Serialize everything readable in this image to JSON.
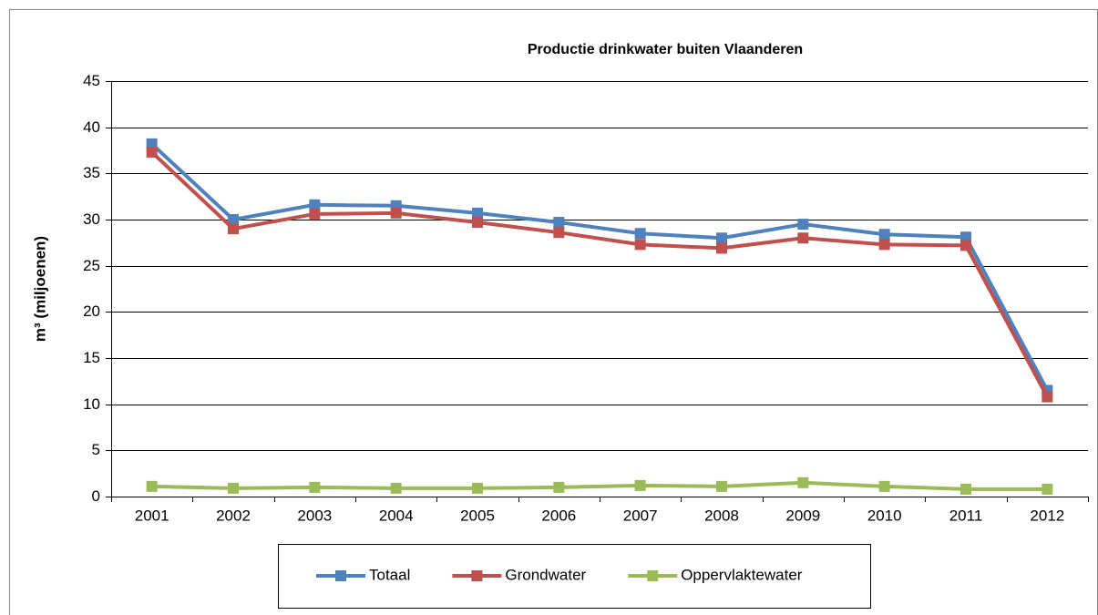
{
  "chart_data": {
    "type": "line",
    "title": "Productie drinkwater buiten Vlaanderen",
    "y_label": "m³ (miljoenen)",
    "categories": [
      "2001",
      "2002",
      "2003",
      "2004",
      "2005",
      "2006",
      "2007",
      "2008",
      "2009",
      "2010",
      "2011",
      "2012"
    ],
    "series": [
      {
        "name": "Totaal",
        "color": "#4f81bd",
        "values": [
          38.2,
          30.0,
          31.6,
          31.5,
          30.7,
          29.7,
          28.5,
          28.0,
          29.5,
          28.4,
          28.1,
          11.5
        ]
      },
      {
        "name": "Grondwater",
        "color": "#c0504d",
        "values": [
          37.3,
          29.0,
          30.6,
          30.7,
          29.7,
          28.6,
          27.3,
          26.9,
          28.0,
          27.3,
          27.2,
          10.8
        ]
      },
      {
        "name": "Oppervlaktewater",
        "color": "#9bbb59",
        "values": [
          1.1,
          0.9,
          1.0,
          0.9,
          0.9,
          1.0,
          1.2,
          1.1,
          1.5,
          1.1,
          0.8,
          0.8
        ]
      }
    ],
    "ylim": [
      0,
      45
    ],
    "yticks": [
      0,
      5,
      10,
      15,
      20,
      25,
      30,
      35,
      40,
      45
    ],
    "grid": true,
    "legend": "bottom"
  }
}
